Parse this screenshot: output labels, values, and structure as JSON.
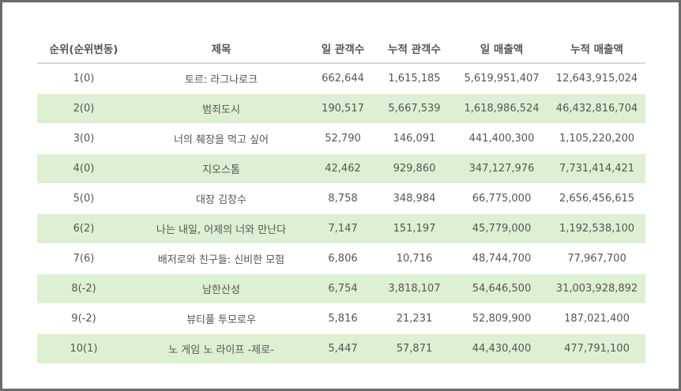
{
  "table": {
    "headers": [
      "순위(순위변동)",
      "제목",
      "일 관객수",
      "누적 관객수",
      "일 매출액",
      "누적 매출액"
    ],
    "rows": [
      [
        "1(0)",
        "토르: 라그나로크",
        "662,644",
        "1,615,185",
        "5,619,951,407",
        "12,643,915,024"
      ],
      [
        "2(0)",
        "범죄도시",
        "190,517",
        "5,667,539",
        "1,618,986,524",
        "46,432,816,704"
      ],
      [
        "3(0)",
        "너의 췌장을 먹고 싶어",
        "52,790",
        "146,091",
        "441,400,300",
        "1,105,220,200"
      ],
      [
        "4(0)",
        "지오스톰",
        "42,462",
        "929,860",
        "347,127,976",
        "7,731,414,421"
      ],
      [
        "5(0)",
        "대장 김창수",
        "8,758",
        "348,984",
        "66,775,000",
        "2,656,456,615"
      ],
      [
        "6(2)",
        "나는 내일, 어제의 너와 만난다",
        "7,147",
        "151,197",
        "45,779,000",
        "1,192,538,100"
      ],
      [
        "7(6)",
        "배저로와 친구들: 신비한 모험",
        "6,806",
        "10,716",
        "48,744,700",
        "77,967,700"
      ],
      [
        "8(-2)",
        "남한산성",
        "6,754",
        "3,818,107",
        "54,646,500",
        "31,003,928,892"
      ],
      [
        "9(-2)",
        "뷰티풀 투모로우",
        "5,816",
        "21,231",
        "52,809,900",
        "187,021,400"
      ],
      [
        "10(1)",
        "노 게임 노 라이프 -제로-",
        "5,447",
        "57,871",
        "44,430,400",
        "477,791,100"
      ]
    ]
  },
  "colors": {
    "row_alt_background": "#def0d3",
    "text": "#555555",
    "frame_border": "#6b6b6b"
  }
}
